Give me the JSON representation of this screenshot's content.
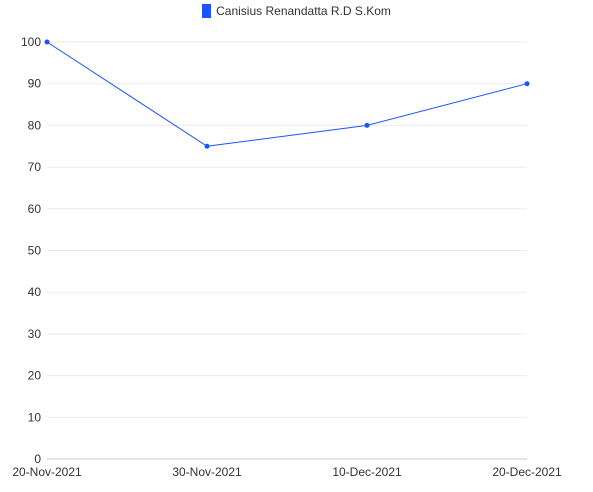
{
  "chart_data": {
    "type": "line",
    "x": [
      "20-Nov-2021",
      "30-Nov-2021",
      "10-Dec-2021",
      "20-Dec-2021"
    ],
    "series": [
      {
        "name": "Canisius Renandatta R.D S.Kom",
        "values": [
          100,
          75,
          80,
          90
        ],
        "color": "#1a53ff"
      }
    ],
    "ylim": [
      0,
      100
    ],
    "yticks": [
      "0",
      "10",
      "20",
      "30",
      "40",
      "50",
      "60",
      "70",
      "80",
      "90",
      "100"
    ],
    "grid": true,
    "legend_position": "top-center"
  }
}
